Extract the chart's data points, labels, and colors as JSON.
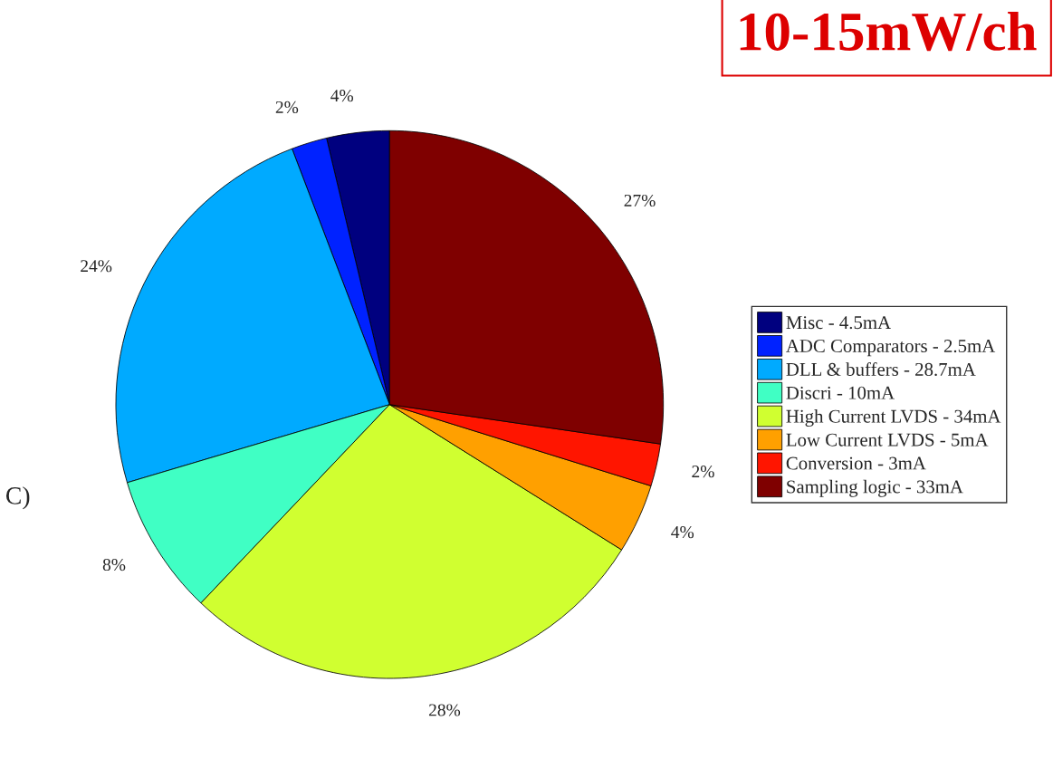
{
  "chart_data": {
    "type": "pie",
    "title": "10-15mW/ch",
    "categories": [
      "Misc - 4.5mA",
      "ADC Comparators - 2.5mA",
      "DLL & buffers - 28.7mA",
      "Discri - 10mA",
      "High Current LVDS - 34mA",
      "Low Current LVDS - 5mA",
      "Conversion - 3mA",
      "Sampling logic - 33mA"
    ],
    "values": [
      3.7,
      2.1,
      23.8,
      8.3,
      28.2,
      4.1,
      2.5,
      27.3
    ],
    "value_labels": [
      "4%",
      "2%",
      "24%",
      "8%",
      "28%",
      "4%",
      "2%",
      "27%"
    ],
    "colors": [
      "#00007f",
      "#0022ff",
      "#00aaff",
      "#40ffc4",
      "#d0ff30",
      "#ffa000",
      "#ff1500",
      "#7f0000"
    ],
    "annotations": [
      "C)"
    ],
    "legend": "right"
  }
}
